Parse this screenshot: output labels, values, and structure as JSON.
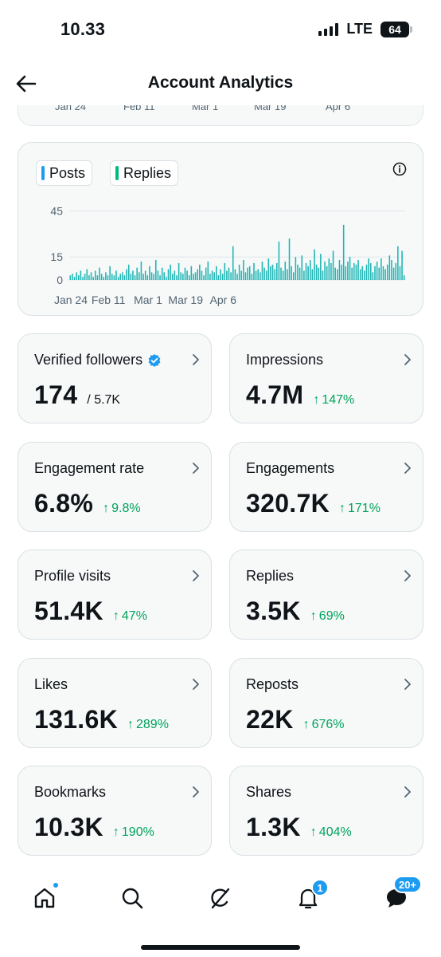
{
  "status_bar": {
    "time": "10.33",
    "network": "LTE",
    "battery": "64"
  },
  "header": {
    "title": "Account Analytics",
    "back_icon": "arrow-left-icon"
  },
  "prev_card": {
    "dates": [
      "Jan 24",
      "Feb 11",
      "Mar 1",
      "Mar 19",
      "Apr 6"
    ]
  },
  "chart_data": {
    "type": "bar",
    "series": [
      {
        "name": "Posts",
        "color": "#1d9bf0"
      },
      {
        "name": "Replies",
        "color": "#00ba7c"
      }
    ],
    "bar_color": "#1fb5b5",
    "y_ticks": [
      "45",
      "15",
      "0"
    ],
    "y_tick_values": [
      45,
      15,
      0
    ],
    "ylim": [
      0,
      50
    ],
    "x_labels": [
      "Jan 24",
      "Feb 11",
      "Mar 1",
      "Mar 19",
      "Apr 6"
    ],
    "x_label_days": [
      0,
      18,
      37,
      55,
      73
    ],
    "grid": true,
    "values": [
      3,
      4,
      2,
      5,
      3,
      6,
      2,
      4,
      7,
      3,
      5,
      2,
      6,
      3,
      8,
      4,
      2,
      5,
      3,
      9,
      4,
      3,
      6,
      2,
      4,
      5,
      3,
      7,
      10,
      4,
      6,
      3,
      8,
      5,
      12,
      4,
      6,
      3,
      9,
      5,
      4,
      13,
      6,
      3,
      8,
      5,
      2,
      7,
      10,
      4,
      6,
      3,
      11,
      5,
      4,
      8,
      6,
      3,
      9,
      4,
      5,
      7,
      10,
      6,
      3,
      8,
      12,
      4,
      6,
      5,
      9,
      3,
      7,
      4,
      11,
      6,
      8,
      5,
      22,
      7,
      4,
      10,
      6,
      13,
      5,
      8,
      9,
      4,
      11,
      6,
      7,
      5,
      12,
      8,
      6,
      14,
      9,
      10,
      7,
      11,
      25,
      8,
      6,
      12,
      7,
      27,
      9,
      5,
      15,
      10,
      8,
      16,
      6,
      11,
      9,
      13,
      7,
      20,
      10,
      8,
      17,
      6,
      12,
      9,
      14,
      11,
      19,
      8,
      7,
      13,
      10,
      36,
      9,
      12,
      15,
      8,
      11,
      10,
      13,
      7,
      9,
      6,
      10,
      14,
      11,
      5,
      9,
      12,
      8,
      14,
      9,
      7,
      10,
      16,
      13,
      8,
      11,
      22,
      9,
      19,
      3
    ],
    "legend_position": "top-left"
  },
  "info_icon": "info-icon",
  "metrics": [
    {
      "label": "Verified followers",
      "value": "174",
      "sub": "/ 5.7K",
      "change": "",
      "verified": true
    },
    {
      "label": "Impressions",
      "value": "4.7M",
      "sub": "",
      "change": "147%"
    },
    {
      "label": "Engagement rate",
      "value": "6.8%",
      "sub": "",
      "change": "9.8%"
    },
    {
      "label": "Engagements",
      "value": "320.7K",
      "sub": "",
      "change": "171%"
    },
    {
      "label": "Profile visits",
      "value": "51.4K",
      "sub": "",
      "change": "47%"
    },
    {
      "label": "Replies",
      "value": "3.5K",
      "sub": "",
      "change": "69%"
    },
    {
      "label": "Likes",
      "value": "131.6K",
      "sub": "",
      "change": "289%"
    },
    {
      "label": "Reposts",
      "value": "22K",
      "sub": "",
      "change": "676%"
    },
    {
      "label": "Bookmarks",
      "value": "10.3K",
      "sub": "",
      "change": "190%"
    },
    {
      "label": "Shares",
      "value": "1.3K",
      "sub": "",
      "change": "404%"
    }
  ],
  "change_arrow": "↑",
  "bottom_nav": {
    "items": [
      {
        "name": "home",
        "icon": "home-icon"
      },
      {
        "name": "search",
        "icon": "search-icon"
      },
      {
        "name": "grok",
        "icon": "grok-icon"
      },
      {
        "name": "notifications",
        "icon": "bell-icon",
        "badge": "1"
      },
      {
        "name": "messages",
        "icon": "messages-icon",
        "badge": "20+"
      }
    ]
  },
  "colors": {
    "accent": "#1d9bf0",
    "positive": "#00a35c",
    "card_bg": "#f7f9f9",
    "border": "#d9e0e5"
  }
}
